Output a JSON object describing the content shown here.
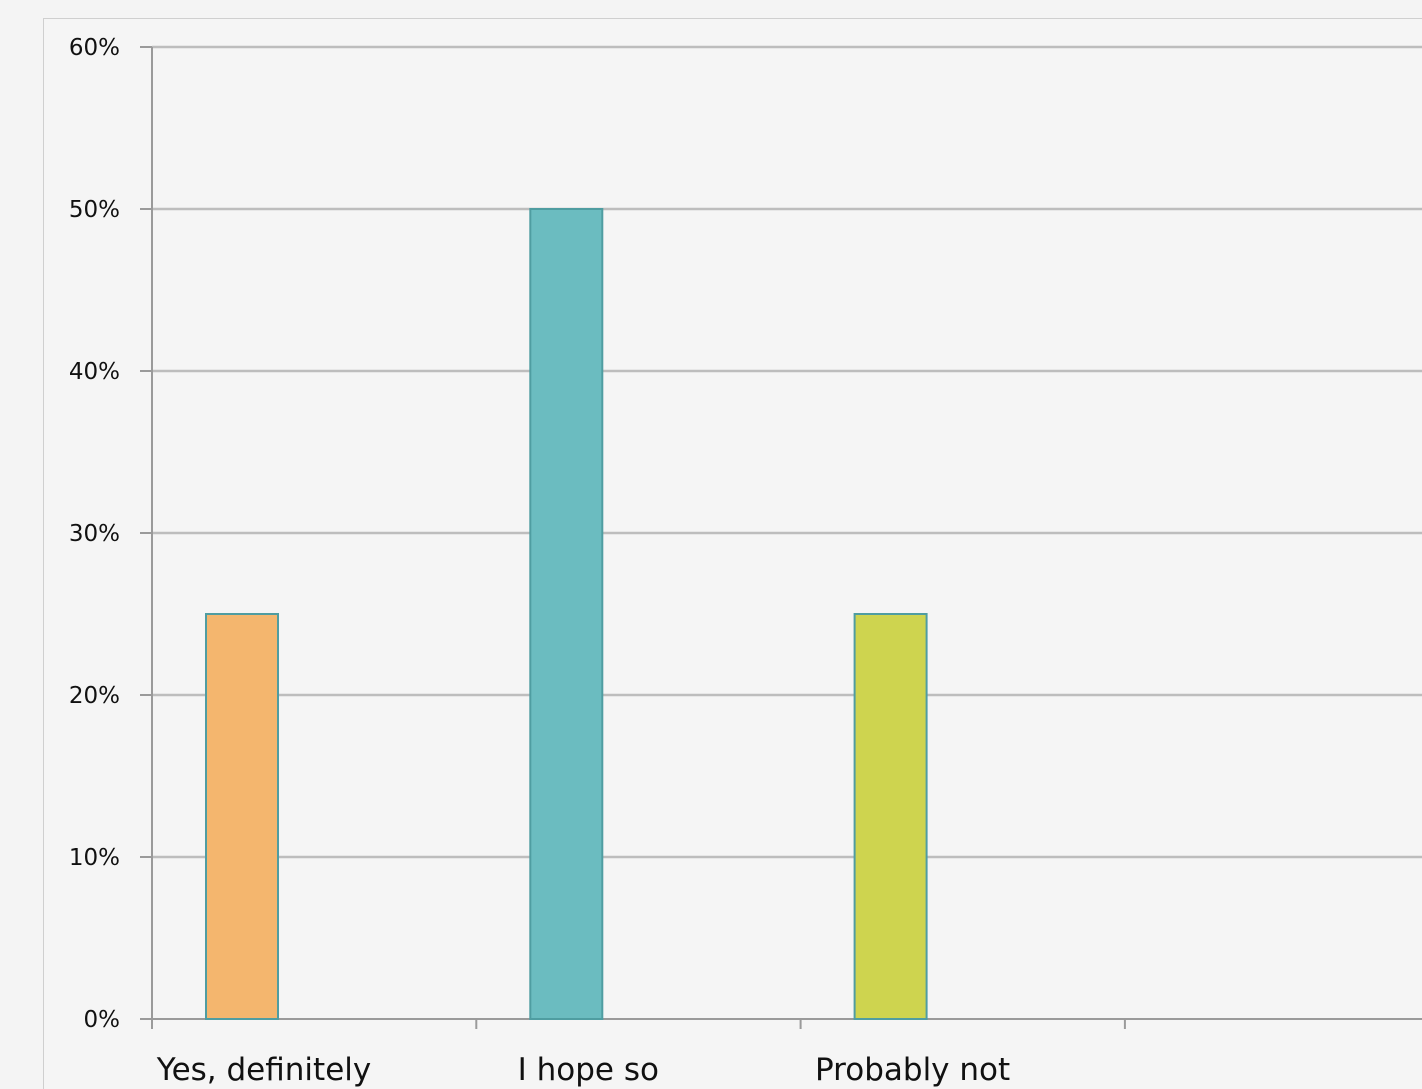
{
  "chart_data": {
    "type": "bar",
    "categories": [
      "Yes, definitely",
      "I hope so",
      "Probably not",
      ""
    ],
    "values": [
      25,
      50,
      25,
      null
    ],
    "bar_colors": [
      "#f4b66e",
      "#6bbcc0",
      "#ced44f"
    ],
    "bar_stroke": "#4f9da1",
    "ylim": [
      0,
      60
    ],
    "yticks": [
      "0%",
      "10%",
      "20%",
      "30%",
      "40%",
      "50%",
      "60%"
    ],
    "ytick_values": [
      0,
      10,
      20,
      30,
      40,
      50,
      60
    ],
    "grid": true,
    "grid_color": "#bdbdbd",
    "axis_color": "#9a9a9a",
    "title": "",
    "xlabel": "",
    "ylabel": ""
  }
}
